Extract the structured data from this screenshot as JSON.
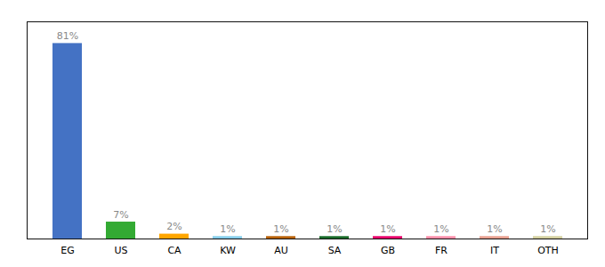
{
  "chart_data": {
    "type": "bar",
    "categories": [
      "EG",
      "US",
      "CA",
      "KW",
      "AU",
      "SA",
      "GB",
      "FR",
      "IT",
      "OTH"
    ],
    "values": [
      81,
      7,
      2,
      1,
      1,
      1,
      1,
      1,
      1,
      1
    ],
    "value_labels": [
      "81%",
      "7%",
      "2%",
      "1%",
      "1%",
      "1%",
      "1%",
      "1%",
      "1%",
      "1%"
    ],
    "colors": [
      "#4472C4",
      "#33AA33",
      "#FFA500",
      "#87CEEB",
      "#B8620A",
      "#1A6B2A",
      "#E8006A",
      "#FF8FAA",
      "#E8A090",
      "#D4D0A0"
    ],
    "ylim": [
      0,
      90
    ],
    "data_labels": true,
    "tick_labels": "x",
    "grid": false
  }
}
